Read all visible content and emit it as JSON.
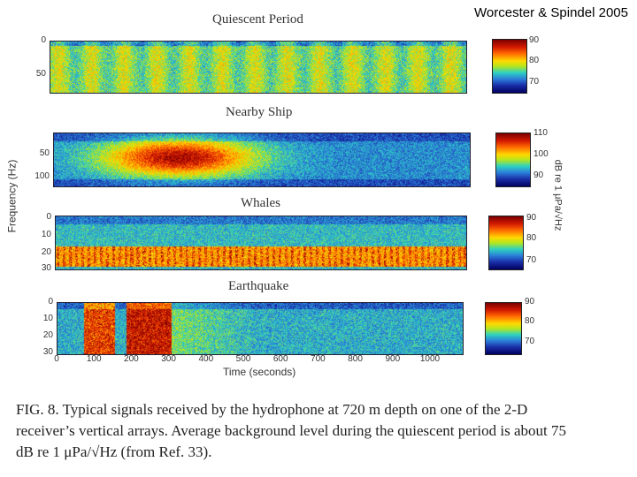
{
  "attribution": "Worcester & Spindel 2005",
  "panels": [
    {
      "title": "Quiescent Period",
      "yticks": [
        "0",
        "50"
      ],
      "cbar_ticks": [
        "90",
        "80",
        "70"
      ]
    },
    {
      "title": "Nearby Ship",
      "yticks": [
        "50",
        "100"
      ],
      "cbar_ticks": [
        "110",
        "100",
        "90"
      ]
    },
    {
      "title": "Whales",
      "yticks": [
        "0",
        "10",
        "20",
        "30"
      ],
      "cbar_ticks": [
        "90",
        "80",
        "70"
      ]
    },
    {
      "title": "Earthquake",
      "yticks": [
        "0",
        "10",
        "20",
        "30"
      ],
      "cbar_ticks": [
        "90",
        "80",
        "70"
      ]
    }
  ],
  "axes": {
    "ylabel": "Frequency (Hz)",
    "xlabel": "Time (seconds)",
    "xticks": [
      "0",
      "100",
      "200",
      "300",
      "400",
      "500",
      "600",
      "700",
      "800",
      "900",
      "1000"
    ],
    "colorbar_label": "dB re 1 μPa/√Hz"
  },
  "caption": {
    "fig_label": "FIG. 8.",
    "text": "Typical signals received by the hydrophone at 720 m depth on one of the 2-D receiver’s vertical arrays. Average background level during the quiescent period is about 75 dB re 1 μPa/√Hz (from Ref. 33)."
  },
  "colors": {
    "low": "#000060",
    "mid": "#b5e61d",
    "high": "#7a0000"
  }
}
